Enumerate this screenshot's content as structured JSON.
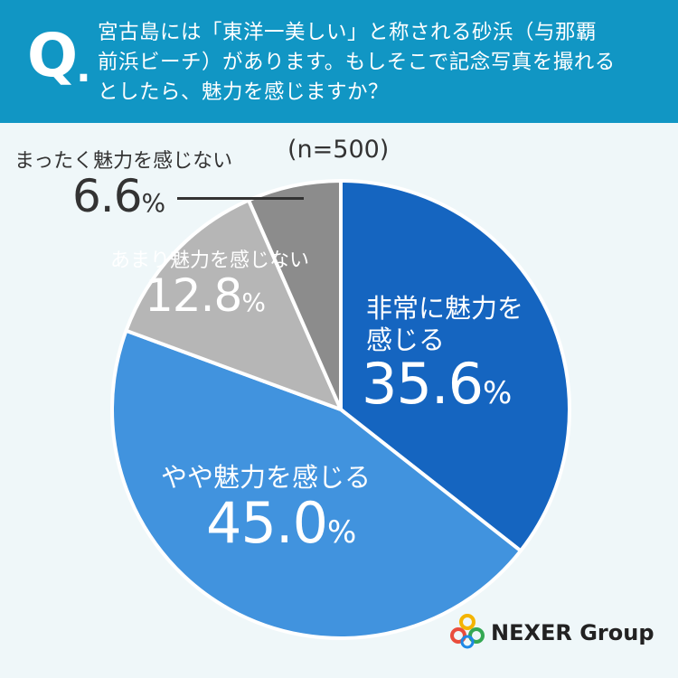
{
  "header": {
    "q_mark": "Q",
    "q_dot": ".",
    "question_lines": [
      "宮古島には「東洋一美しい」と称される砂浜（与那覇",
      "前浜ビーチ）があります。もしそこで記念写真を撮れる",
      "としたら、魅力を感じますか？"
    ]
  },
  "sample_size": "(n=500)",
  "chart_data": {
    "type": "pie",
    "title": "宮古島には「東洋一美しい」と称される砂浜（与那覇前浜ビーチ）があります。もしそこで記念写真を撮れるとしたら、魅力を感じますか？",
    "n": 500,
    "slices": [
      {
        "label": "非常に魅力を感じる",
        "value": 35.6,
        "color": "#1565c0"
      },
      {
        "label": "やや魅力を感じる",
        "value": 45.0,
        "color": "#4193de"
      },
      {
        "label": "あまり魅力を感じない",
        "value": 12.8,
        "color": "#b6b6b6"
      },
      {
        "label": "まったく魅力を感じない",
        "value": 6.6,
        "color": "#8c8c8c"
      }
    ],
    "value_suffix": "%"
  },
  "labels": {
    "s1_line1": "非常に魅力を",
    "s1_line2": "感じる",
    "s1_value": "35.6",
    "s2_name": "やや魅力を感じる",
    "s2_value": "45.0",
    "s3_name": "あまり魅力を感じない",
    "s3_value": "12.8",
    "s4_name": "まったく魅力を感じない",
    "s4_value": "6.6",
    "percent": "%"
  },
  "logo": {
    "text": "NEXER Group",
    "colors": [
      "#e94d3c",
      "#f4b400",
      "#34a853",
      "#1e88e5"
    ]
  }
}
